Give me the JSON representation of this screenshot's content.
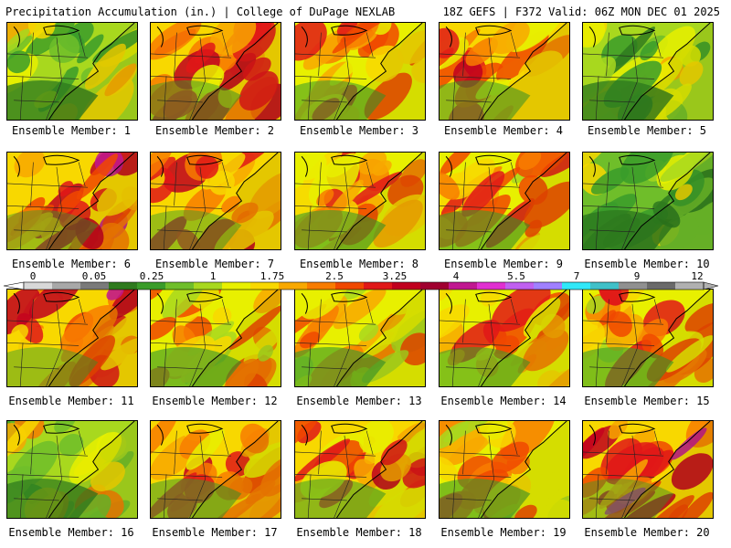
{
  "header": {
    "title_left": "Precipitation Accumulation (in.) | College of DuPage NEXLAB",
    "title_right": "18Z GEFS | F372 Valid: 06Z MON DEC 01 2025"
  },
  "panels": [
    {
      "caption": "Ensemble Member: 1",
      "tint": 0.25
    },
    {
      "caption": "Ensemble Member: 2",
      "tint": 0.65
    },
    {
      "caption": "Ensemble Member: 3",
      "tint": 0.55
    },
    {
      "caption": "Ensemble Member: 4",
      "tint": 0.6
    },
    {
      "caption": "Ensemble Member: 5",
      "tint": 0.2
    },
    {
      "caption": "Ensemble Member: 6",
      "tint": 0.75
    },
    {
      "caption": "Ensemble Member: 7",
      "tint": 0.7
    },
    {
      "caption": "Ensemble Member: 8",
      "tint": 0.5
    },
    {
      "caption": "Ensemble Member: 9",
      "tint": 0.55
    },
    {
      "caption": "Ensemble Member: 10",
      "tint": 0.15
    },
    {
      "caption": "Ensemble Member: 11",
      "tint": 0.7
    },
    {
      "caption": "Ensemble Member: 12",
      "tint": 0.45
    },
    {
      "caption": "Ensemble Member: 13",
      "tint": 0.45
    },
    {
      "caption": "Ensemble Member: 14",
      "tint": 0.55
    },
    {
      "caption": "Ensemble Member: 15",
      "tint": 0.5
    },
    {
      "caption": "Ensemble Member: 16",
      "tint": 0.3
    },
    {
      "caption": "Ensemble Member: 17",
      "tint": 0.6
    },
    {
      "caption": "Ensemble Member: 18",
      "tint": 0.6
    },
    {
      "caption": "Ensemble Member: 19",
      "tint": 0.5
    },
    {
      "caption": "Ensemble Member: 20",
      "tint": 0.75
    }
  ],
  "colorbar": {
    "labels": [
      "0",
      "0.05",
      "0.25",
      "1",
      "1.75",
      "2.5",
      "3.25",
      "4",
      "5.5",
      "7",
      "9",
      "12"
    ],
    "colors": [
      "#d8d8d8",
      "#a8a8a8",
      "#7a7a7a",
      "#2e7a1e",
      "#3a9c2a",
      "#6fbe2a",
      "#a8d81e",
      "#e8f000",
      "#f8d800",
      "#f8a800",
      "#f87c00",
      "#f04800",
      "#e01818",
      "#c0001e",
      "#a00030",
      "#c01890",
      "#e030d0",
      "#c060f0",
      "#a080ff",
      "#30e8f8",
      "#40c0c8",
      "#909090",
      "#6a6a6a",
      "#b0b0b0"
    ]
  }
}
